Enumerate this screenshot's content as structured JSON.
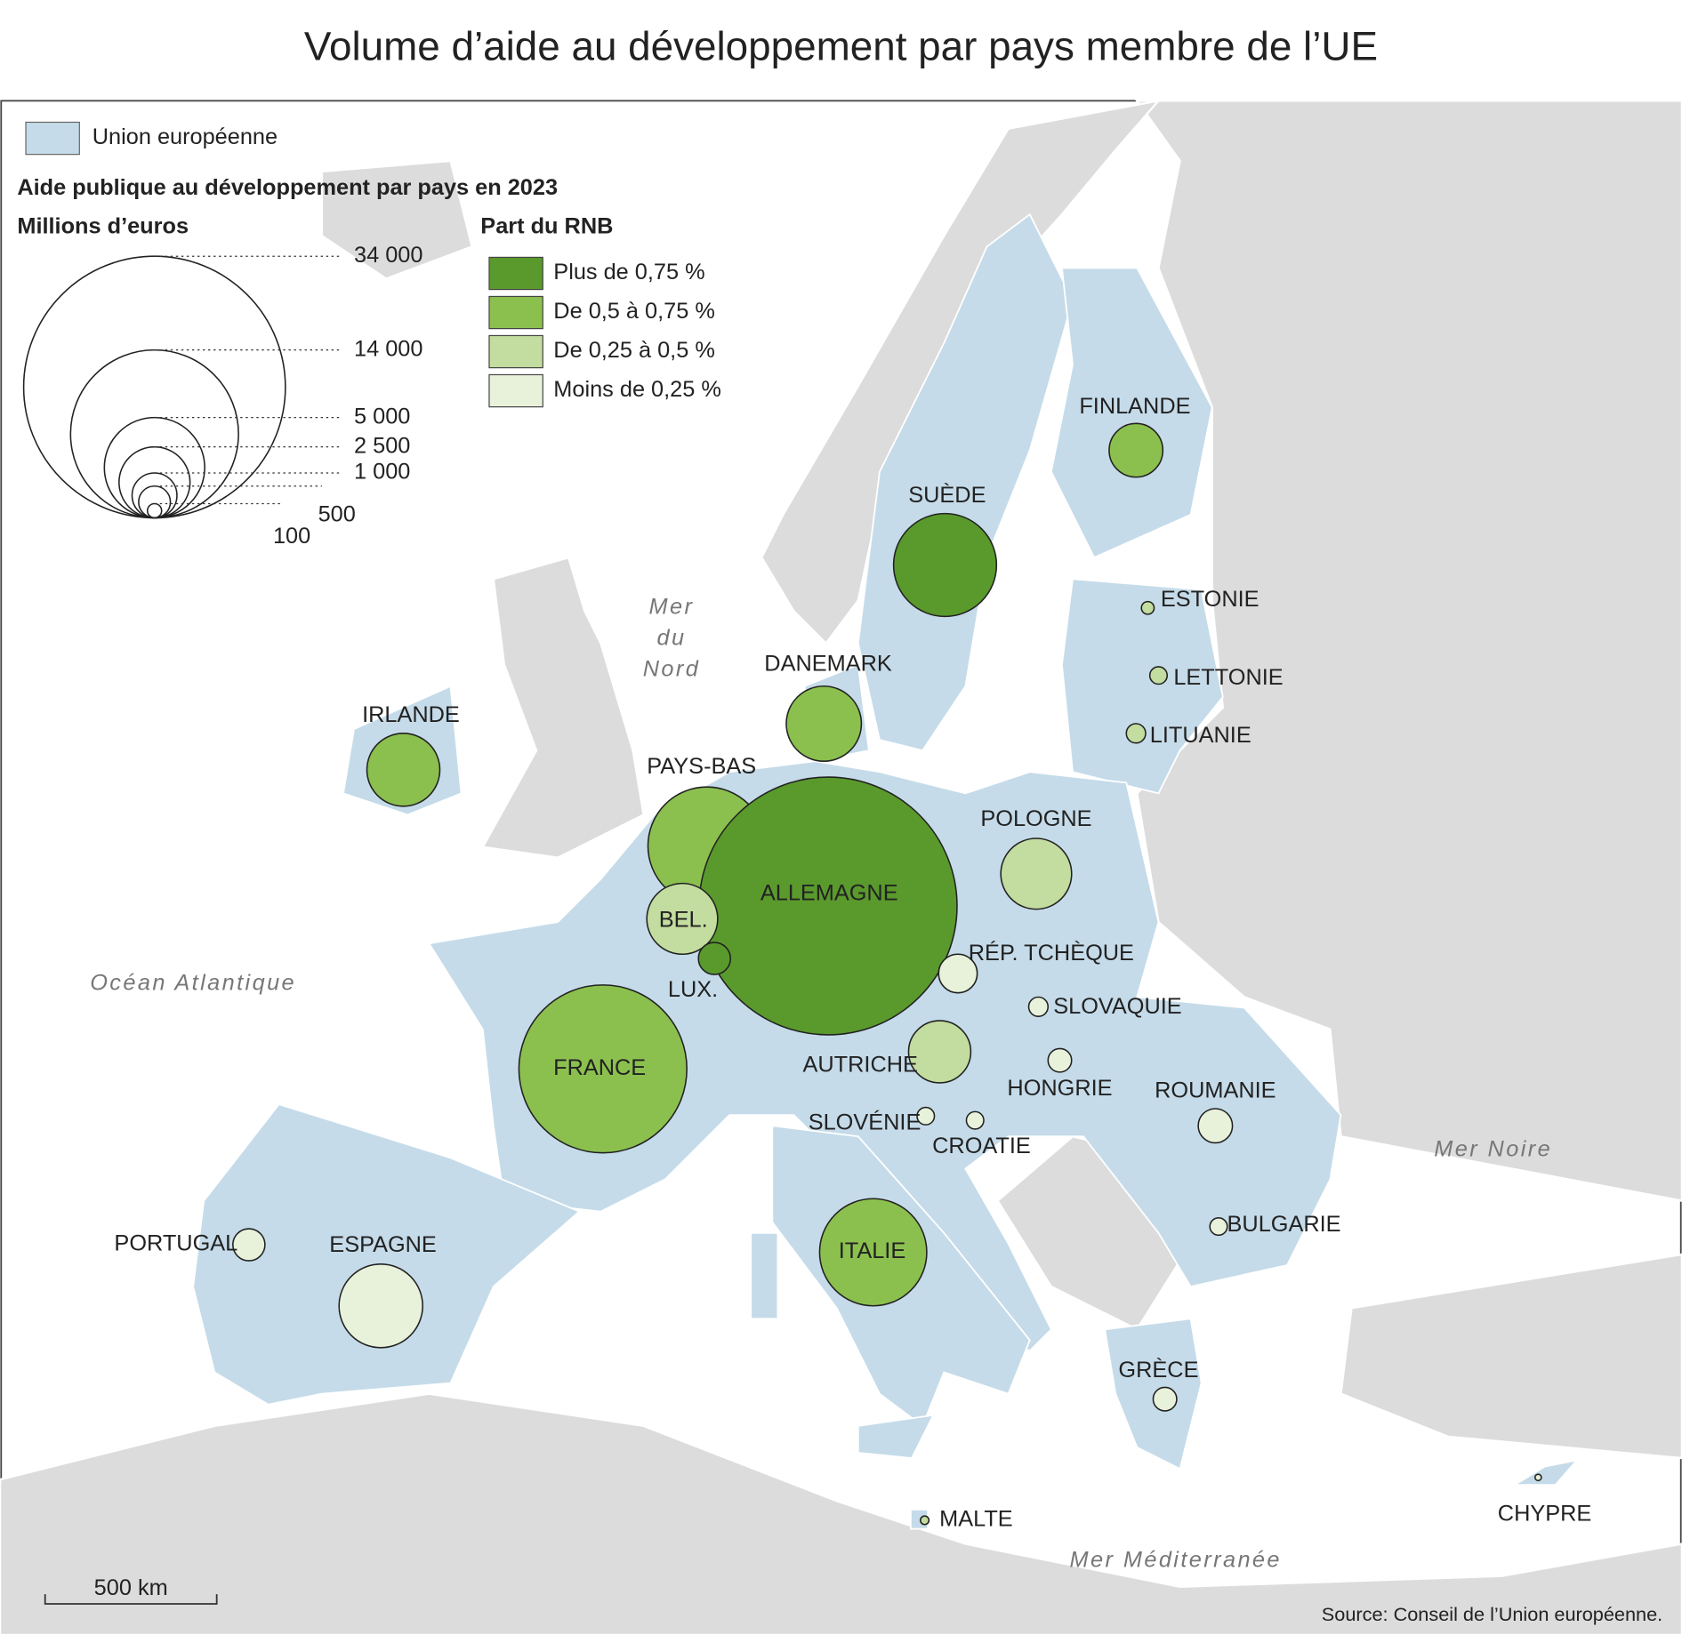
{
  "title": "Volume d’aide au développement par pays membre de l’UE",
  "legend": {
    "eu_label": "Union européenne",
    "aid_title": "Aide publique au développement par pays en 2023",
    "size_title": "Millions d’euros",
    "size_values": [
      {
        "value": 34000,
        "label": "34 000"
      },
      {
        "value": 14000,
        "label": "14 000"
      },
      {
        "value": 5000,
        "label": "5 000"
      },
      {
        "value": 2500,
        "label": "2 500"
      },
      {
        "value": 1000,
        "label": "1 000"
      },
      500,
      100
    ],
    "share_title": "Part du RNB",
    "share_classes": [
      {
        "label": "Plus de 0,75 %",
        "color": "#5a9a2c"
      },
      {
        "label": "De 0,5 à 0,75 %",
        "color": "#8bc04f"
      },
      {
        "label": "De 0,25 à 0,5 %",
        "color": "#c3dc9f"
      },
      {
        "label": "Moins de 0,25 %",
        "color": "#e8f2da"
      }
    ]
  },
  "countries": [
    {
      "name": "FINLANDE",
      "aid": 1430,
      "share_class": 1
    },
    {
      "name": "SUÈDE",
      "aid": 5260,
      "share_class": 0
    },
    {
      "name": "ESTONIE",
      "aid": 80,
      "share_class": 2
    },
    {
      "name": "LETTONIE",
      "aid": 150,
      "share_class": 2
    },
    {
      "name": "LITUANIE",
      "aid": 185,
      "share_class": 2
    },
    {
      "name": "DANEMARK",
      "aid": 2800,
      "share_class": 1
    },
    {
      "name": "IRLANDE",
      "aid": 2640,
      "share_class": 1
    },
    {
      "name": "PAYS-BAS",
      "aid": 6900,
      "share_class": 1
    },
    {
      "name": "ALLEMAGNE",
      "aid": 33000,
      "share_class": 0
    },
    {
      "name": "POLOGNE",
      "aid": 2490,
      "share_class": 2
    },
    {
      "name": "BEL.",
      "aid": 2490,
      "share_class": 2
    },
    {
      "name": "LUX.",
      "aid": 510,
      "share_class": 0
    },
    {
      "name": "RÉP. TCHÈQUE",
      "aid": 740,
      "share_class": 3
    },
    {
      "name": "SLOVAQUIE",
      "aid": 185,
      "share_class": 3
    },
    {
      "name": "FRANCE",
      "aid": 14000,
      "share_class": 1
    },
    {
      "name": "AUTRICHE",
      "aid": 1920,
      "share_class": 2
    },
    {
      "name": "HONGRIE",
      "aid": 275,
      "share_class": 3
    },
    {
      "name": "ROUMANIE",
      "aid": 580,
      "share_class": 3
    },
    {
      "name": "SLOVÉNIE",
      "aid": 150,
      "share_class": 3
    },
    {
      "name": "CROATIE",
      "aid": 150,
      "share_class": 3
    },
    {
      "name": "ITALIE",
      "aid": 5700,
      "share_class": 1
    },
    {
      "name": "PORTUGAL",
      "aid": 510,
      "share_class": 3
    },
    {
      "name": "ESPAGNE",
      "aid": 3470,
      "share_class": 3
    },
    {
      "name": "BULGARIE",
      "aid": 150,
      "share_class": 3
    },
    {
      "name": "GRÈCE",
      "aid": 275,
      "share_class": 3
    },
    {
      "name": "MALTE",
      "aid": 36,
      "share_class": 2
    },
    {
      "name": "CHYPRE",
      "aid": 20,
      "share_class": 3
    }
  ],
  "seas": [
    {
      "lines": [
        "Mer",
        "du",
        "Nord"
      ]
    },
    {
      "lines": [
        "Océan Atlantique"
      ]
    },
    {
      "lines": [
        "Mer Noire"
      ]
    },
    {
      "lines": [
        "Mer Méditerranée"
      ]
    }
  ],
  "scale_bar": "500 km",
  "source": "Source: Conseil de l’Union européenne."
}
